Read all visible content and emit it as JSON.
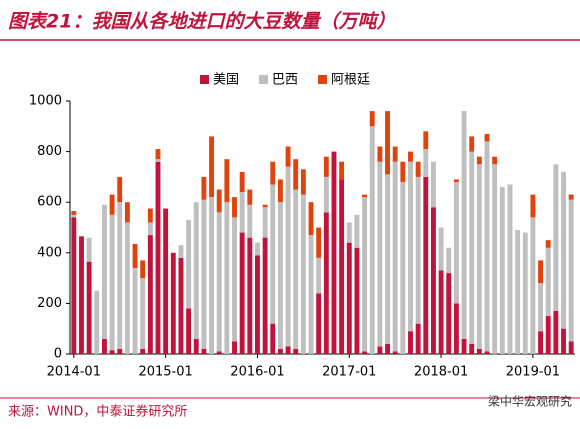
{
  "header": {
    "title": "图表21：我国从各地进口的大豆数量（万吨）"
  },
  "chart_data": {
    "type": "stacked_bar",
    "categories": [
      "2014-01",
      null,
      null,
      null,
      null,
      null,
      null,
      null,
      null,
      null,
      null,
      null,
      "2015-01",
      null,
      null,
      null,
      null,
      null,
      null,
      null,
      null,
      null,
      null,
      null,
      "2016-01",
      null,
      null,
      null,
      null,
      null,
      null,
      null,
      null,
      null,
      null,
      null,
      "2017-01",
      null,
      null,
      null,
      null,
      null,
      null,
      null,
      null,
      null,
      null,
      null,
      "2018-01",
      null,
      null,
      null,
      null,
      null,
      null,
      null,
      null,
      null,
      null,
      null,
      "2019-01",
      null,
      null,
      null,
      null,
      null
    ],
    "series": [
      {
        "name": "美国",
        "color": "#c0143c",
        "values": [
          540,
          465,
          365,
          0,
          60,
          15,
          20,
          0,
          0,
          20,
          470,
          760,
          575,
          400,
          380,
          180,
          60,
          20,
          0,
          10,
          0,
          50,
          480,
          460,
          390,
          460,
          120,
          20,
          30,
          20,
          0,
          0,
          240,
          560,
          800,
          690,
          440,
          420,
          10,
          0,
          30,
          40,
          10,
          0,
          90,
          120,
          700,
          580,
          330,
          320,
          200,
          60,
          40,
          20,
          10,
          0,
          0,
          0,
          0,
          0,
          0,
          90,
          150,
          170,
          100,
          50
        ]
      },
      {
        "name": "巴西",
        "color": "#bfbfbf",
        "values": [
          10,
          0,
          95,
          250,
          530,
          535,
          580,
          520,
          340,
          280,
          50,
          10,
          0,
          0,
          50,
          350,
          540,
          590,
          620,
          550,
          600,
          490,
          160,
          130,
          50,
          120,
          550,
          580,
          710,
          630,
          630,
          470,
          140,
          140,
          0,
          0,
          80,
          130,
          610,
          900,
          730,
          670,
          750,
          680,
          670,
          580,
          110,
          180,
          170,
          100,
          480,
          900,
          760,
          730,
          830,
          750,
          660,
          670,
          490,
          480,
          540,
          190,
          270,
          580,
          620,
          560
        ]
      },
      {
        "name": "阿根廷",
        "color": "#e0440e",
        "values": [
          15,
          0,
          0,
          0,
          0,
          80,
          100,
          80,
          95,
          70,
          55,
          40,
          0,
          0,
          0,
          0,
          0,
          90,
          240,
          90,
          170,
          80,
          80,
          60,
          0,
          10,
          90,
          90,
          80,
          120,
          100,
          130,
          120,
          80,
          0,
          70,
          0,
          0,
          10,
          60,
          60,
          250,
          60,
          80,
          40,
          60,
          70,
          0,
          0,
          0,
          10,
          0,
          60,
          30,
          30,
          30,
          0,
          0,
          0,
          0,
          90,
          90,
          30,
          0,
          0,
          20
        ]
      }
    ],
    "ylim": [
      0,
      1000
    ],
    "yticks": [
      0,
      200,
      400,
      600,
      800,
      1000
    ],
    "grid": false,
    "legend": "top"
  },
  "footer": {
    "source": "来源：WIND，中泰证券研究所",
    "watermark": "梁中华宏观研究"
  }
}
